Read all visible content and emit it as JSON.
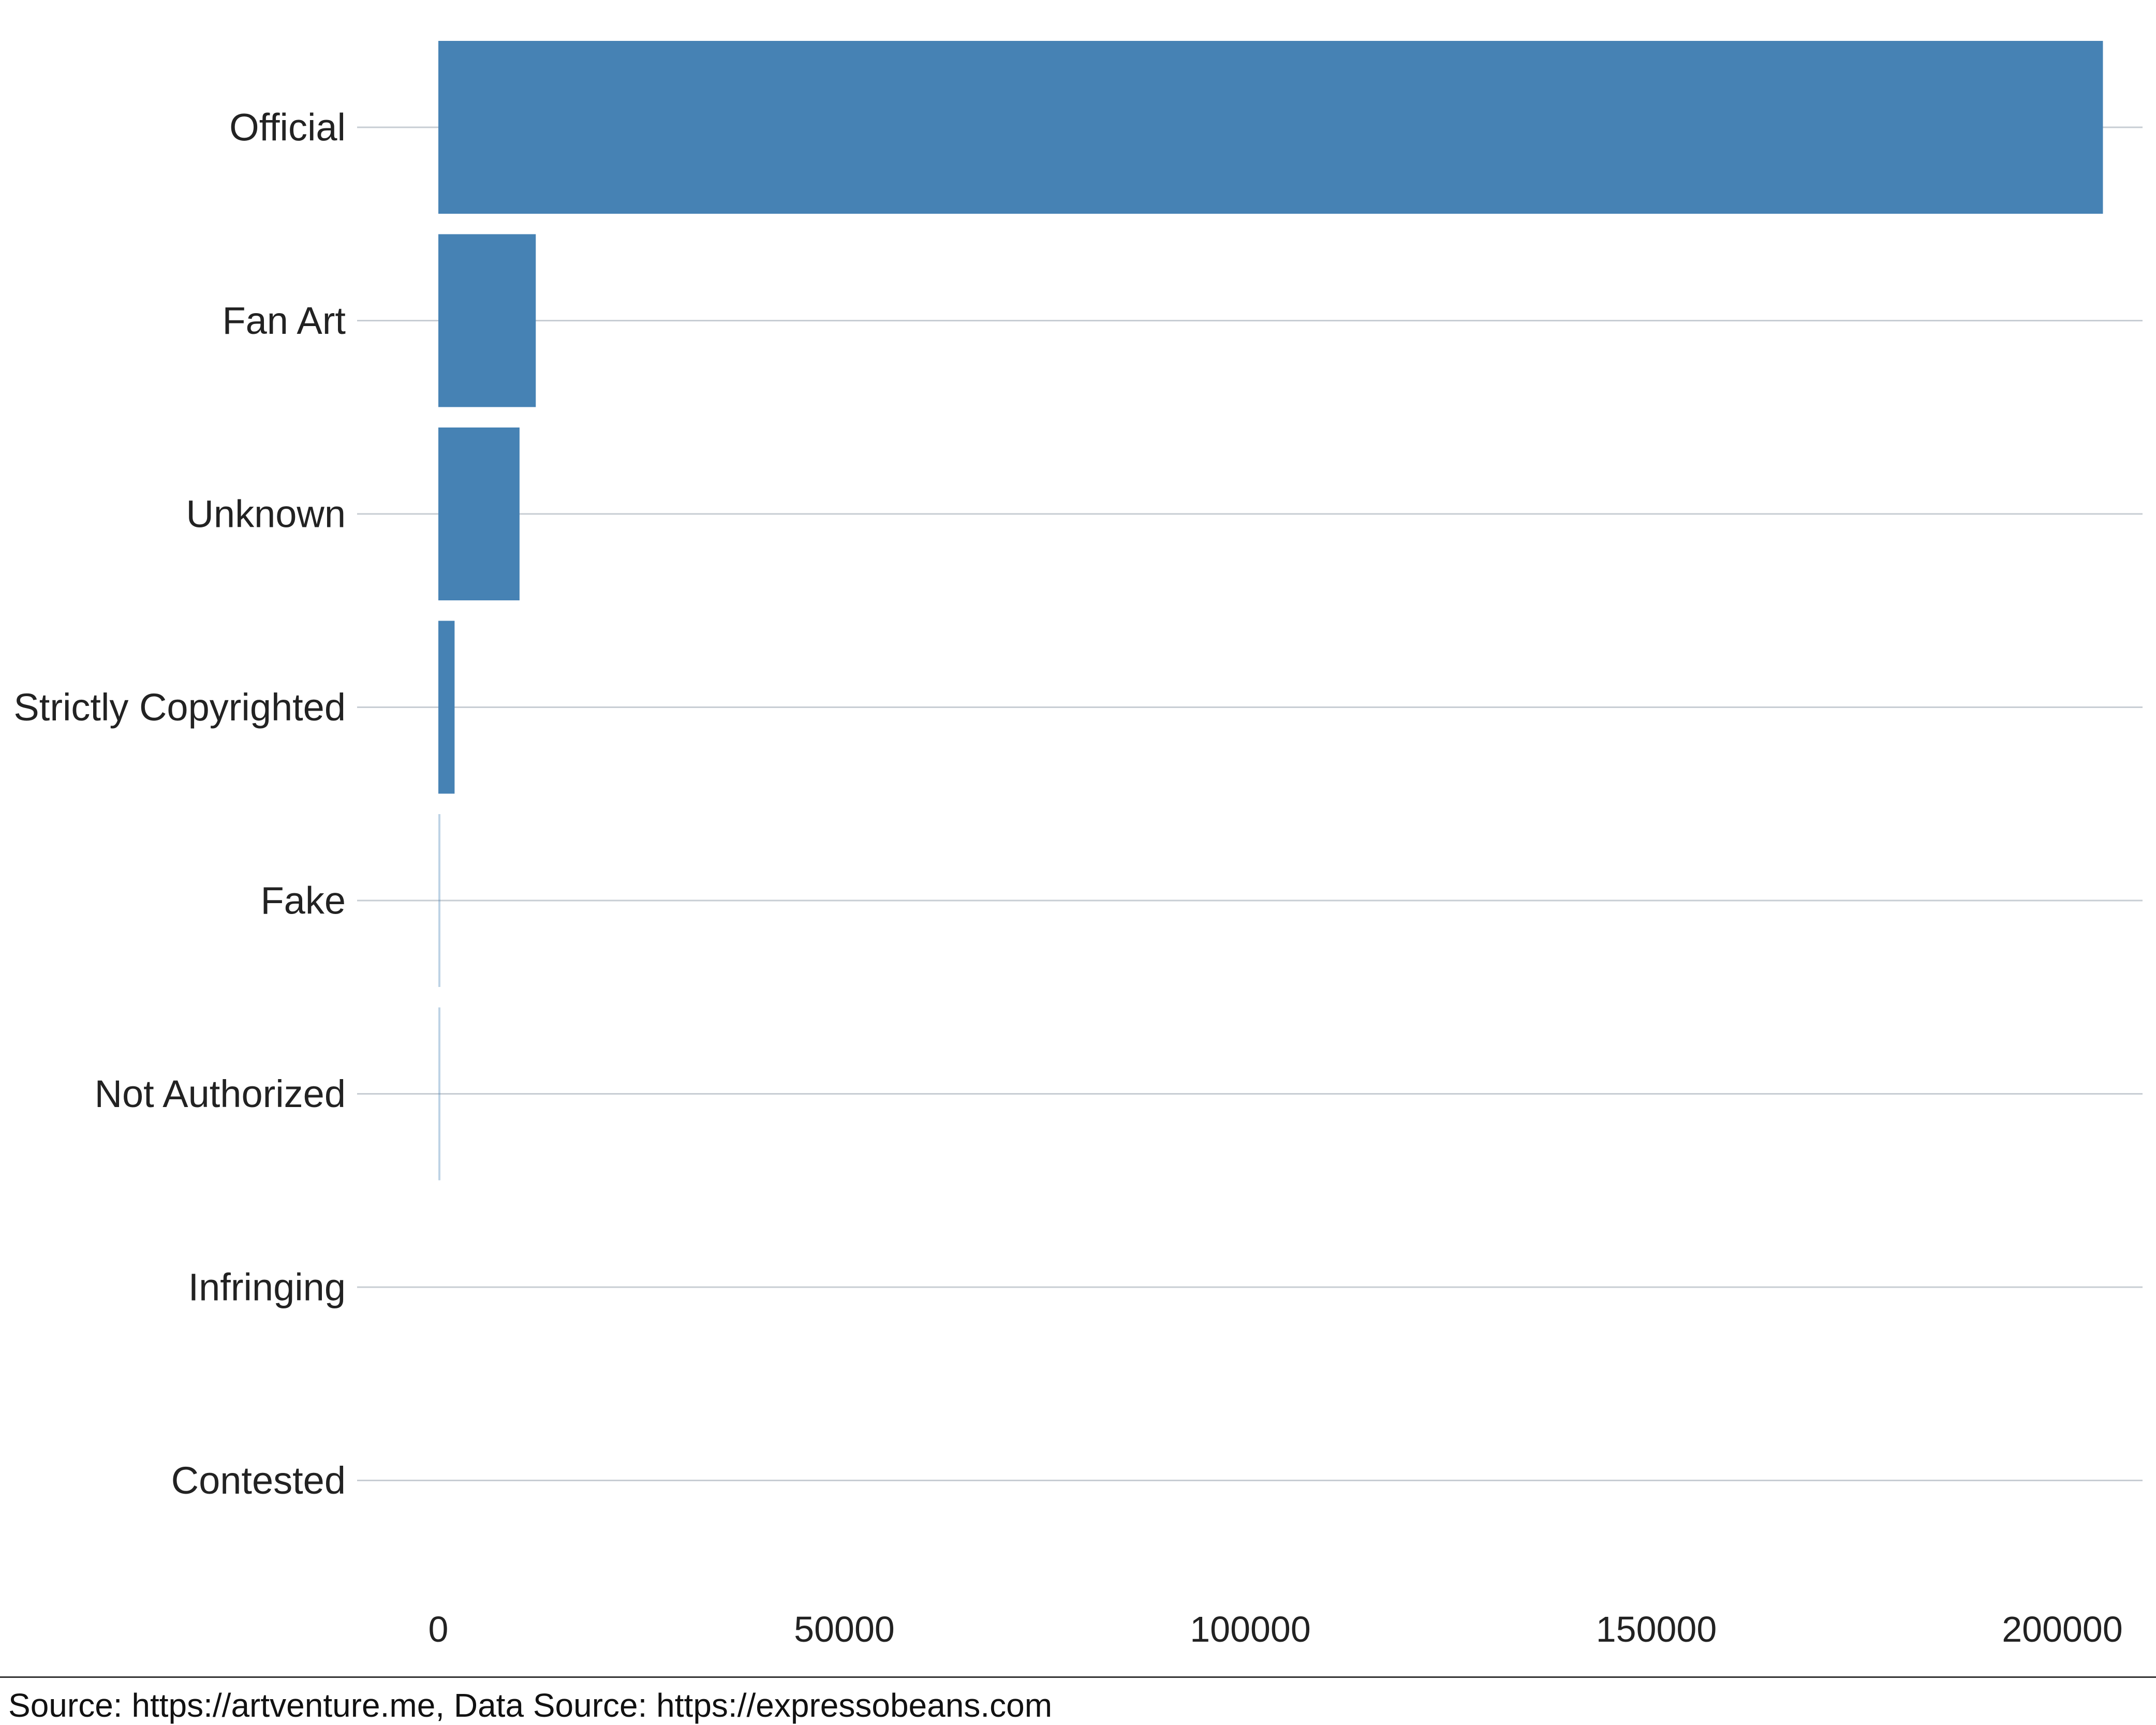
{
  "chart_data": {
    "type": "bar",
    "orientation": "horizontal",
    "categories": [
      "Official",
      "Fan Art",
      "Unknown",
      "Strictly Copyrighted",
      "Fake",
      "Not Authorized",
      "Infringing",
      "Contested"
    ],
    "values": [
      205000,
      12000,
      10000,
      2000,
      120,
      80,
      0,
      0
    ],
    "xlim": [
      0,
      215000
    ],
    "xticks": [
      0,
      50000,
      100000,
      150000,
      200000
    ],
    "xtick_labels": [
      "0",
      "50000",
      "100000",
      "150000",
      "200000"
    ],
    "title": "",
    "xlabel": "",
    "ylabel": "",
    "grid": "horizontal",
    "legend": "none",
    "bar_color": "#4682B4",
    "grid_color": "#C7CDD3",
    "text_color": "#222222"
  },
  "caption": "Source: https://artventure.me, Data Source: https://expressobeans.com"
}
